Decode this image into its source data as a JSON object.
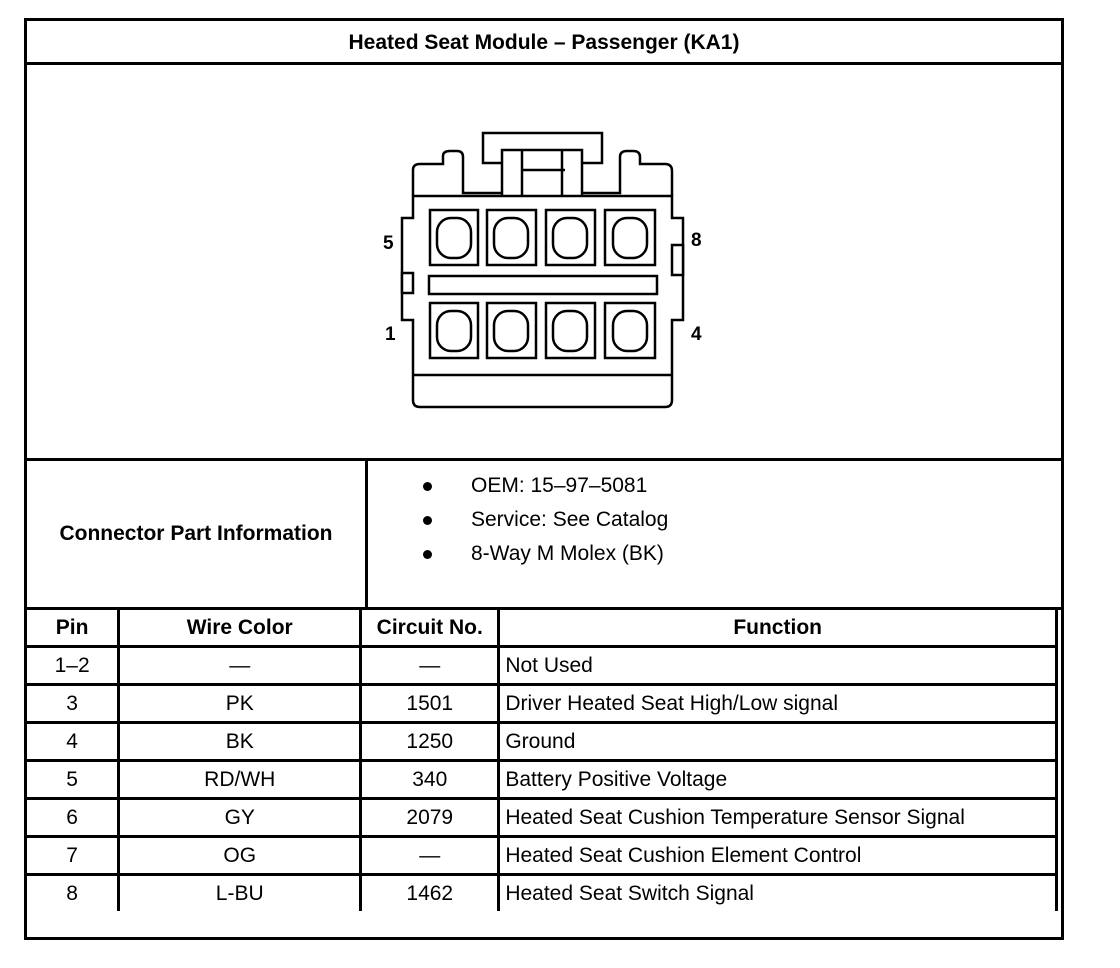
{
  "title": "Heated Seat Module – Passenger (KA1)",
  "diagram": {
    "pin_labels": {
      "top_left": "5",
      "top_right": "8",
      "bottom_left": "1",
      "bottom_right": "4"
    }
  },
  "part_info": {
    "label": "Connector Part Information",
    "items": [
      "OEM: 15–97–5081",
      "Service: See Catalog",
      "8-Way M Molex (BK)"
    ]
  },
  "table": {
    "headers": [
      "Pin",
      "Wire Color",
      "Circuit No.",
      "Function"
    ],
    "rows": [
      [
        "1–2",
        "—",
        "—",
        "Not Used"
      ],
      [
        "3",
        "PK",
        "1501",
        "Driver Heated Seat High/Low signal"
      ],
      [
        "4",
        "BK",
        "1250",
        "Ground"
      ],
      [
        "5",
        "RD/WH",
        "340",
        "Battery Positive Voltage"
      ],
      [
        "6",
        "GY",
        "2079",
        "Heated Seat Cushion Temperature Sensor Signal"
      ],
      [
        "7",
        "OG",
        "—",
        "Heated Seat Cushion Element Control"
      ],
      [
        "8",
        "L-BU",
        "1462",
        "Heated Seat Switch Signal"
      ]
    ]
  }
}
